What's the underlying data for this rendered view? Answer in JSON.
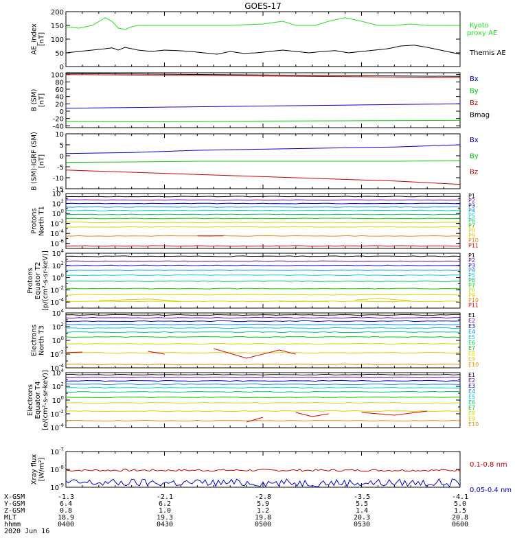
{
  "title": "GOES-17",
  "colors": {
    "green": "#00e000",
    "black": "#000000",
    "blue": "#0000cc",
    "red": "#cc0000",
    "ae_green": "#22dd22",
    "xray_red": "#cc0000",
    "xray_blue": "#0000dd"
  },
  "panel_colors_p": [
    "#000000",
    "#6a00aa",
    "#0000cc",
    "#0088ee",
    "#00cccc",
    "#00cc66",
    "#00cc00",
    "#ccdd00",
    "#ddcc00",
    "#ee8800",
    "#dd0000"
  ],
  "panel_colors_e": [
    "#000000",
    "#6a00aa",
    "#0000cc",
    "#0088ee",
    "#00cccc",
    "#00cc66",
    "#00cc00",
    "#ccdd00",
    "#ddcc00",
    "#ee8800",
    "#dd0000"
  ],
  "chart_data": [
    {
      "id": "ae",
      "type": "line",
      "ylabel": [
        "AE_index",
        "[nT]"
      ],
      "ylim": [
        0,
        200
      ],
      "yticks": [
        "0",
        "50",
        "100",
        "150",
        "200"
      ],
      "legend": [
        {
          "label": "Kyoto",
          "color": "#22dd22"
        },
        {
          "label": "proxy AE",
          "color": "#22dd22"
        },
        {
          "label": "Themis AE",
          "color": "#000000"
        }
      ],
      "series": [
        {
          "name": "Kyoto proxy AE",
          "color": "#22dd22",
          "x": [
            0,
            4,
            8,
            12,
            14,
            16,
            18,
            20,
            22,
            24,
            28,
            32,
            40,
            50,
            60,
            66,
            70,
            76,
            80,
            85,
            90,
            95,
            100,
            105,
            110,
            115,
            120
          ],
          "y": [
            145,
            140,
            150,
            178,
            165,
            140,
            135,
            145,
            150,
            150,
            150,
            150,
            150,
            150,
            155,
            165,
            150,
            150,
            165,
            178,
            165,
            150,
            150,
            155,
            150,
            150,
            150
          ]
        },
        {
          "name": "Themis AE",
          "color": "#000000",
          "x": [
            0,
            4,
            8,
            12,
            14,
            16,
            18,
            22,
            26,
            30,
            34,
            38,
            42,
            46,
            50,
            54,
            58,
            62,
            66,
            70,
            74,
            78,
            82,
            86,
            90,
            94,
            98,
            102,
            106,
            110,
            114,
            118,
            120
          ],
          "y": [
            50,
            55,
            60,
            65,
            68,
            60,
            70,
            60,
            55,
            60,
            58,
            55,
            50,
            45,
            55,
            48,
            50,
            55,
            60,
            55,
            50,
            55,
            58,
            50,
            55,
            60,
            65,
            75,
            78,
            70,
            60,
            50,
            45
          ]
        }
      ]
    },
    {
      "id": "bsm",
      "type": "line",
      "ylabel": [
        "B (SM)",
        "[nT]"
      ],
      "ylim": [
        -45,
        105
      ],
      "yticks": [
        "100",
        "80",
        "60",
        "40",
        "20",
        "0",
        "-20",
        "-40"
      ],
      "legend": [
        {
          "label": "Bx",
          "color": "#0000cc"
        },
        {
          "label": "By",
          "color": "#00cc00"
        },
        {
          "label": "Bz",
          "color": "#cc0000"
        },
        {
          "label": "Bmag",
          "color": "#000000"
        }
      ],
      "series": [
        {
          "name": "Bx",
          "color": "#0000cc",
          "x": [
            0,
            30,
            60,
            90,
            120
          ],
          "y": [
            8,
            11,
            14,
            17,
            20
          ]
        },
        {
          "name": "By",
          "color": "#00cc00",
          "x": [
            0,
            30,
            60,
            90,
            120
          ],
          "y": [
            -28,
            -29,
            -27,
            -26,
            -25
          ]
        },
        {
          "name": "Bz",
          "color": "#cc0000",
          "x": [
            0,
            30,
            60,
            90,
            120
          ],
          "y": [
            100,
            98,
            96,
            94,
            92
          ]
        },
        {
          "name": "Bmag",
          "color": "#000000",
          "x": [
            0,
            30,
            60,
            90,
            120
          ],
          "y": [
            103,
            101,
            99,
            97,
            95
          ]
        }
      ]
    },
    {
      "id": "bigrf",
      "type": "line",
      "ylabel": [
        "B (SM)-IGRF (SM)",
        "[nT]"
      ],
      "ylim": [
        -15,
        10
      ],
      "yticks": [
        "10",
        "5",
        "0",
        "-5",
        "-10",
        "-15"
      ],
      "legend": [
        {
          "label": "Bx",
          "color": "#0000cc"
        },
        {
          "label": "By",
          "color": "#00cc00"
        },
        {
          "label": "Bz",
          "color": "#cc0000"
        }
      ],
      "series": [
        {
          "name": "Bx",
          "color": "#0000cc",
          "x": [
            0,
            20,
            40,
            60,
            80,
            100,
            120
          ],
          "y": [
            1,
            1.5,
            2.5,
            3,
            3.5,
            4,
            5
          ]
        },
        {
          "name": "By",
          "color": "#00cc00",
          "x": [
            0,
            20,
            40,
            60,
            80,
            100,
            120
          ],
          "y": [
            -3,
            -2.8,
            -2.5,
            -2.5,
            -2.5,
            -2.5,
            -2.2
          ]
        },
        {
          "name": "Bz",
          "color": "#cc0000",
          "x": [
            0,
            20,
            40,
            60,
            80,
            100,
            120
          ],
          "y": [
            -6.5,
            -7.5,
            -8.5,
            -9.5,
            -10.5,
            -11.5,
            -13
          ]
        }
      ]
    },
    {
      "id": "pn",
      "type": "line",
      "log": true,
      "ylabel": [
        "Protons",
        "North T1"
      ],
      "ylim": [
        -7,
        4
      ],
      "yticks": [
        {
          "b": "10",
          "e": "4"
        },
        {
          "b": "10",
          "e": "2"
        },
        {
          "b": "10",
          "e": "0"
        },
        {
          "b": "10",
          "e": "-2"
        },
        {
          "b": "10",
          "e": "-4"
        },
        {
          "b": "10",
          "e": "-6"
        }
      ],
      "channels": [
        "P1",
        "P2",
        "P3",
        "P4",
        "P5",
        "P6",
        "P7",
        "P8",
        "P9",
        "P10",
        "P11"
      ],
      "levels": [
        3.4,
        2.7,
        2.0,
        1.3,
        0.6,
        -0.2,
        -1.0,
        -1.8,
        -2.7,
        -4.5,
        -6.5
      ]
    },
    {
      "id": "pe",
      "type": "line",
      "log": true,
      "ylabel": [
        "Protons",
        "Equator T2",
        "[p/(cm²-s-sr-keV)]"
      ],
      "ylim": [
        -5,
        4
      ],
      "yticks": [
        {
          "b": "10",
          "e": "4"
        },
        {
          "b": "10",
          "e": "2"
        },
        {
          "b": "10",
          "e": "0"
        },
        {
          "b": "10",
          "e": "-2"
        },
        {
          "b": "10",
          "e": "-4"
        }
      ],
      "channels": [
        "P1",
        "P2",
        "P3",
        "P4",
        "P5",
        "P6",
        "P7",
        "P8",
        "P9",
        "P10",
        "P11"
      ],
      "levels": [
        3.5,
        2.7,
        2.0,
        1.2,
        0.4,
        -0.6,
        -1.8,
        -2.8,
        -3.9,
        -6,
        -6
      ]
    },
    {
      "id": "en",
      "type": "line",
      "log": true,
      "ylabel": [
        "Electrons",
        "North T3"
      ],
      "ylim": [
        -4,
        4
      ],
      "yticks": [
        {
          "b": "10",
          "e": "4"
        },
        {
          "b": "10",
          "e": "2"
        },
        {
          "b": "10",
          "e": "0"
        },
        {
          "b": "10",
          "e": "-2"
        },
        {
          "b": "10",
          "e": "-4"
        }
      ],
      "channels": [
        "E1",
        "E2",
        "E3",
        "E4",
        "E5",
        "E6",
        "E7",
        "E8",
        "E9",
        "E10"
      ],
      "levels": [
        3.7,
        3.3,
        2.8,
        2.3,
        1.8,
        1.2,
        0.5,
        -0.5,
        -1.8,
        -3.5
      ]
    },
    {
      "id": "ee",
      "type": "line",
      "log": true,
      "ylabel": [
        "Electrons",
        "Equator T4",
        "[e/(cm²-s-sr-keV)]"
      ],
      "ylim": [
        -4,
        4
      ],
      "yticks": [
        {
          "b": "10",
          "e": "4"
        },
        {
          "b": "10",
          "e": "2"
        },
        {
          "b": "10",
          "e": "0"
        },
        {
          "b": "10",
          "e": "-2"
        },
        {
          "b": "10",
          "e": "-4"
        }
      ],
      "channels": [
        "E1",
        "E2",
        "E3",
        "E4",
        "E5",
        "E6",
        "E7",
        "E8",
        "E9",
        "E10"
      ],
      "levels": [
        3.7,
        3.3,
        2.8,
        2.3,
        1.8,
        1.2,
        0.4,
        -0.4,
        -1.6,
        -3
      ]
    },
    {
      "id": "xray",
      "type": "line",
      "log": true,
      "ylabel": [
        "Xray flux",
        "[W/m²]"
      ],
      "ylim": [
        -9,
        -7
      ],
      "yticks": [
        {
          "b": "10",
          "e": "-7"
        },
        {
          "b": "10",
          "e": "-8"
        },
        {
          "b": "10",
          "e": "-9"
        }
      ],
      "legend": [
        {
          "label": "0.1-0.8 nm",
          "color": "#cc0000"
        },
        {
          "label": "0.05-0.4 nm",
          "color": "#0000dd"
        }
      ],
      "series": [
        {
          "name": "0.1-0.8 nm",
          "color": "#cc0000",
          "level": -8.05
        },
        {
          "name": "0.05-0.4 nm",
          "color": "#0000dd",
          "level": -8.75
        }
      ]
    }
  ],
  "x_axis": {
    "rows": [
      {
        "label": "X-GSM",
        "values": [
          "-1.3",
          "-2.1",
          "-2.8",
          "-3.5",
          "-4.1"
        ]
      },
      {
        "label": "Y-GSM",
        "values": [
          "6.4",
          "6.2",
          "5.9",
          "5.5",
          "5.0"
        ]
      },
      {
        "label": "Z-GSM",
        "values": [
          "0.8",
          "1.0",
          "1.2",
          "1.4",
          "1.5"
        ]
      },
      {
        "label": "MLT",
        "values": [
          "18.9",
          "19.3",
          "19.8",
          "20.3",
          "20.8"
        ]
      },
      {
        "label": "hhmm",
        "values": [
          "0400",
          "0430",
          "0500",
          "0530",
          "0600"
        ]
      }
    ],
    "date": "2020 Jun 16"
  }
}
